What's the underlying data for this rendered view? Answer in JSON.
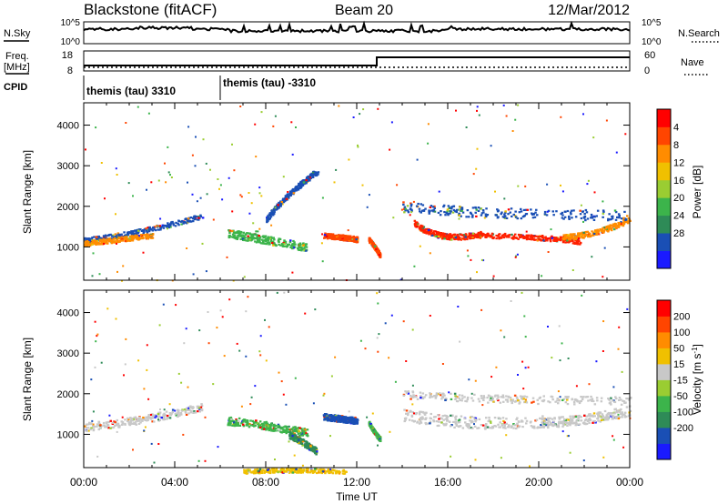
{
  "header": {
    "station": "Blackstone (fitACF)",
    "beam": "Beam 20",
    "date": "12/Mar/2012"
  },
  "noise_panel": {
    "left_label": "N.Sky",
    "right_label": "N.Search",
    "left_ticks": [
      "10^5",
      "10^0"
    ],
    "right_ticks": [
      "10^5",
      "10^0"
    ]
  },
  "freq_panel": {
    "left_label_line1": "Freq.",
    "left_label_line2": "[MHz]",
    "left_ticks": [
      "18",
      "8"
    ],
    "right_label": "Nave",
    "right_ticks": [
      "60",
      "0"
    ]
  },
  "cpid_panel": {
    "label": "CPID",
    "segments": [
      {
        "start_hour": 0,
        "label": "themis (tau) 3310"
      },
      {
        "start_hour": 6,
        "label": "themis (tau) -3310"
      }
    ]
  },
  "chart_data": [
    {
      "type": "heatmap",
      "name": "power-panel",
      "ylabel": "Slant Range [km]",
      "yticks": [
        "1000",
        "2000",
        "3000",
        "4000"
      ],
      "xlabel": "Time UT",
      "xticks": [
        "00:00",
        "04:00",
        "08:00",
        "12:00",
        "16:00",
        "20:00",
        "00:00"
      ],
      "xlim_hours": [
        0,
        24
      ],
      "ylim_km": [
        180,
        4550
      ],
      "colorbar": {
        "label": "Power [dB]",
        "ticks": [
          "4",
          "8",
          "12",
          "16",
          "20",
          "24",
          "28"
        ],
        "colors": [
          "#1a1aff",
          "#1a4fb5",
          "#2e8b57",
          "#3cb44b",
          "#9acd32",
          "#f0c000",
          "#ff8c00",
          "#ff4500",
          "#ff0000"
        ]
      },
      "bands": [
        {
          "t0": 0.0,
          "r0": 1180,
          "t1": 2.5,
          "r1": 1350,
          "t2": 5.2,
          "r2": 1780,
          "width": 120,
          "color": "#1a4fb5"
        },
        {
          "t0": 0.0,
          "r0": 1100,
          "t1": 1.5,
          "r1": 1200,
          "t2": 3.0,
          "r2": 1300,
          "width": 120,
          "color": "#ff8c00"
        },
        {
          "t0": 6.3,
          "r0": 1350,
          "t1": 8.0,
          "r1": 1200,
          "t2": 9.8,
          "r2": 1000,
          "width": 200,
          "color": "#3cb44b"
        },
        {
          "t0": 10.5,
          "r0": 1300,
          "t1": 11.5,
          "r1": 1250,
          "t2": 12.0,
          "r2": 1200,
          "width": 130,
          "color": "#ff4500"
        },
        {
          "t0": 12.5,
          "r0": 1200,
          "t1": 12.8,
          "r1": 1000,
          "t2": 13.0,
          "r2": 800,
          "width": 110,
          "color": "#ff4500"
        },
        {
          "t0": 14.5,
          "r0": 1600,
          "t1": 15.6,
          "r1": 1100,
          "t2": 17.5,
          "r2": 1350,
          "width": 140,
          "color": "#ff2000"
        },
        {
          "t0": 17.0,
          "r0": 1300,
          "t1": 19.5,
          "r1": 1300,
          "t2": 21.8,
          "r2": 1150,
          "width": 130,
          "color": "#ff2000"
        },
        {
          "t0": 21.0,
          "r0": 1250,
          "t1": 22.5,
          "r1": 1300,
          "t2": 24.0,
          "r2": 1700,
          "width": 140,
          "color": "#ff8c00"
        },
        {
          "t0": 14.0,
          "r0": 2000,
          "t1": 18.0,
          "r1": 1800,
          "t2": 24.0,
          "r2": 1800,
          "width": 250,
          "color": "#1a4fb5"
        },
        {
          "t0": 8.0,
          "r0": 1700,
          "t1": 9.0,
          "r1": 2400,
          "t2": 10.3,
          "r2": 2900,
          "width": 150,
          "color": "#1a4fb5"
        }
      ]
    },
    {
      "type": "heatmap",
      "name": "velocity-panel",
      "ylabel": "Slant Range [km]",
      "yticks": [
        "1000",
        "2000",
        "3000",
        "4000"
      ],
      "xlabel": "Time UT",
      "xticks": [
        "00:00",
        "04:00",
        "08:00",
        "12:00",
        "16:00",
        "20:00",
        "00:00"
      ],
      "xlim_hours": [
        0,
        24
      ],
      "ylim_km": [
        180,
        4550
      ],
      "colorbar": {
        "label": "Velocity [m s",
        "label_sup": "-1",
        "label_close": "]",
        "ticks": [
          "200",
          "100",
          "50",
          "15",
          "-15",
          "-50",
          "-100",
          "-200"
        ],
        "colors": [
          "#1a1aff",
          "#1a4fb5",
          "#2e8b57",
          "#3cb44b",
          "#9acd32",
          "#c8c8c8",
          "#f0c000",
          "#ff8c00",
          "#ff4500",
          "#ff0000"
        ]
      },
      "bands": [
        {
          "t0": 0.0,
          "r0": 1200,
          "t1": 2.5,
          "r1": 1320,
          "t2": 5.2,
          "r2": 1700,
          "width": 200,
          "color": "#c8c8c8"
        },
        {
          "t0": 6.3,
          "r0": 1350,
          "t1": 8.0,
          "r1": 1250,
          "t2": 9.8,
          "r2": 1050,
          "width": 200,
          "color": "#3cb44b"
        },
        {
          "t0": 10.5,
          "r0": 1450,
          "t1": 11.3,
          "r1": 1400,
          "t2": 12.0,
          "r2": 1350,
          "width": 160,
          "color": "#1a4fb5"
        },
        {
          "t0": 9.0,
          "r0": 1000,
          "t1": 9.7,
          "r1": 800,
          "t2": 10.2,
          "r2": 600,
          "width": 160,
          "color": "#2e8b57"
        },
        {
          "t0": 12.5,
          "r0": 1300,
          "t1": 12.8,
          "r1": 1000,
          "t2": 13.0,
          "r2": 900,
          "width": 110,
          "color": "#3cb44b"
        },
        {
          "t0": 14.0,
          "r0": 1500,
          "t1": 17.0,
          "r1": 1200,
          "t2": 20.5,
          "r2": 1350,
          "width": 300,
          "color": "#c8c8c8"
        },
        {
          "t0": 20.0,
          "r0": 1300,
          "t1": 22.0,
          "r1": 1350,
          "t2": 24.0,
          "r2": 1600,
          "width": 250,
          "color": "#c8c8c8"
        },
        {
          "t0": 14.0,
          "r0": 2000,
          "t1": 18.0,
          "r1": 1850,
          "t2": 24.0,
          "r2": 1850,
          "width": 200,
          "color": "#c8c8c8"
        },
        {
          "t0": 7.0,
          "r0": 100,
          "t1": 9.0,
          "r1": 150,
          "t2": 11.5,
          "r2": 100,
          "width": 100,
          "color": "#f0c000"
        }
      ]
    }
  ]
}
